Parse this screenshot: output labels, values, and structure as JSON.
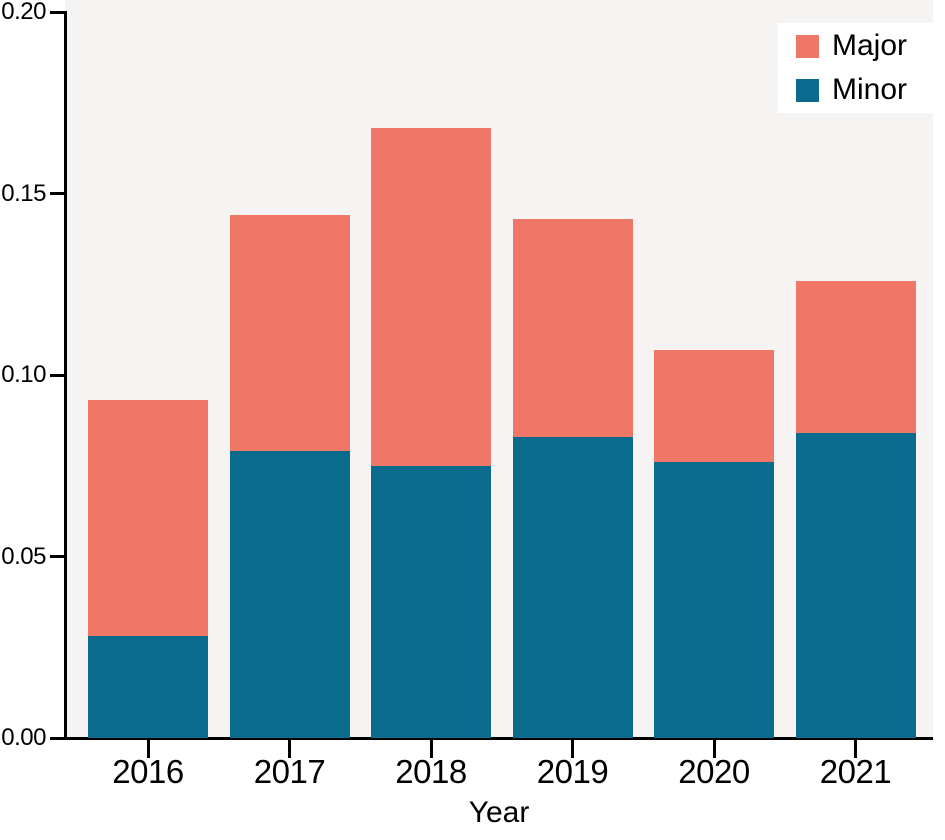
{
  "chart_data": {
    "type": "bar",
    "stacked": true,
    "title": "",
    "xlabel": "Year",
    "ylabel": "",
    "categories": [
      "2016",
      "2017",
      "2018",
      "2019",
      "2020",
      "2021"
    ],
    "series": [
      {
        "name": "Minor",
        "color": "#0A6B8C",
        "values": [
          0.028,
          0.079,
          0.075,
          0.083,
          0.076,
          0.084
        ]
      },
      {
        "name": "Major",
        "color": "#EE7767",
        "values": [
          0.065,
          0.065,
          0.093,
          0.06,
          0.031,
          0.042
        ]
      }
    ],
    "ylim": [
      0,
      0.2
    ],
    "yticks": [
      "0.00",
      "0.05",
      "0.10",
      "0.15",
      "0.20"
    ],
    "grid": false,
    "plot_background": "#F5F4F2",
    "legend": {
      "position": "upper right",
      "entries": [
        "Major",
        "Minor"
      ]
    }
  }
}
